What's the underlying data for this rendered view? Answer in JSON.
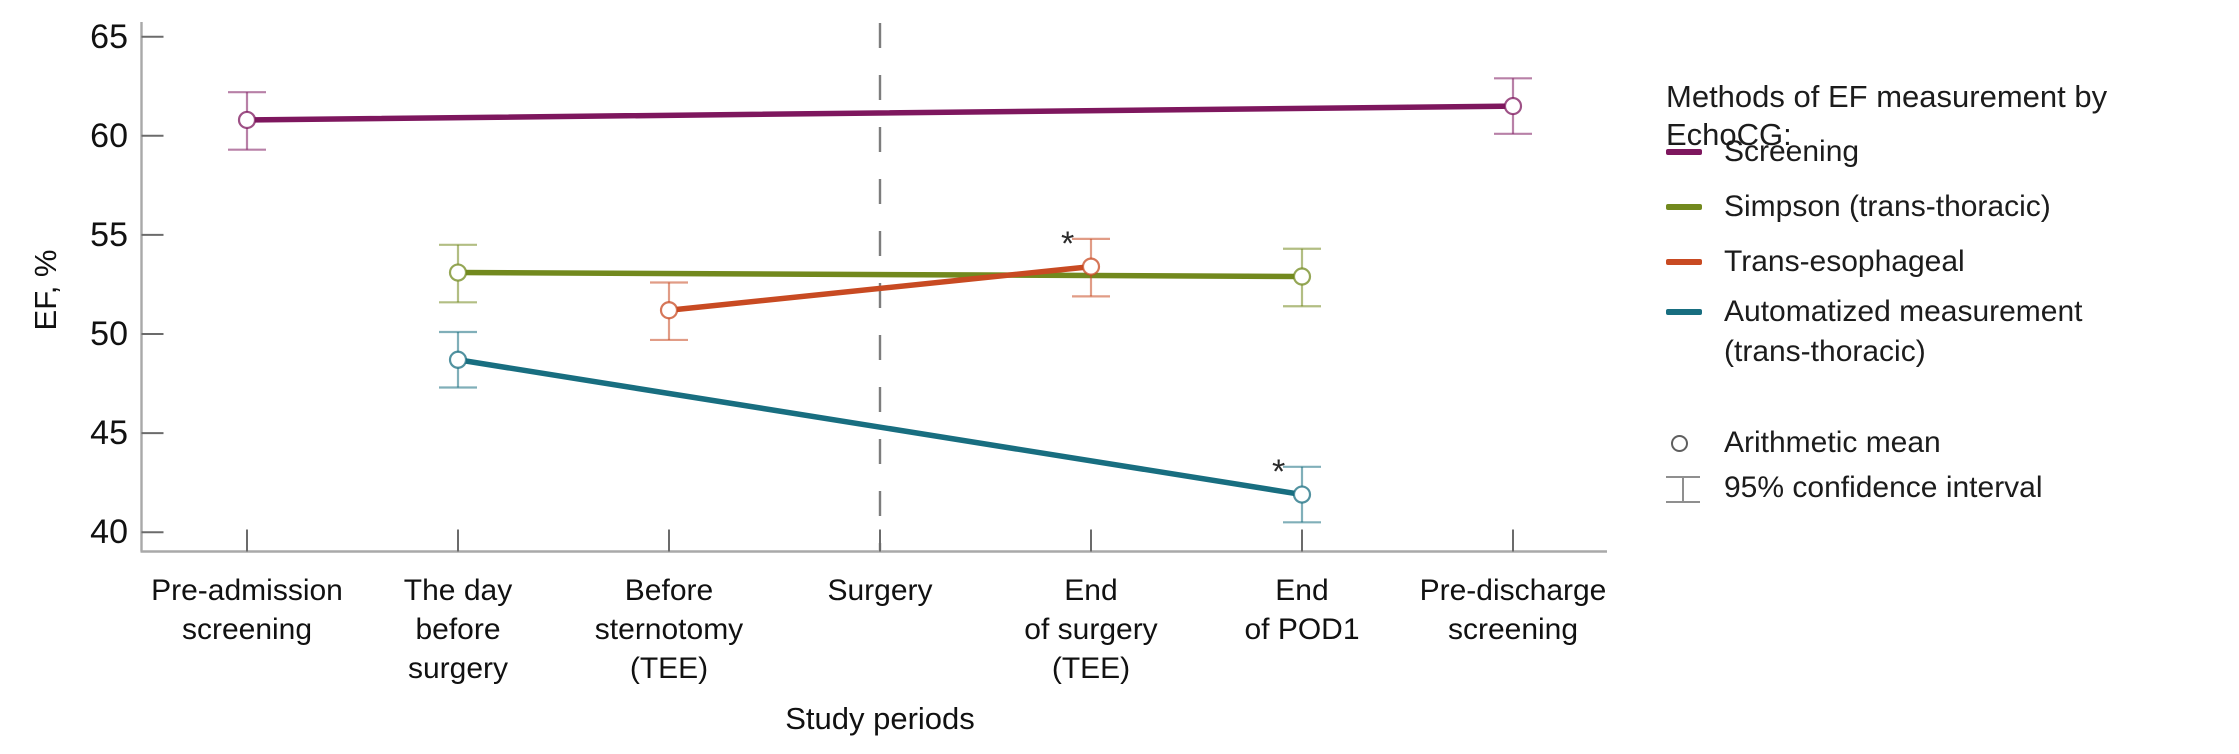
{
  "chart_data": {
    "type": "line",
    "title": "",
    "xlabel": "Study periods",
    "ylabel": "EF, %",
    "ylim": [
      39,
      66
    ],
    "yticks": [
      65,
      60,
      55,
      50,
      45,
      40
    ],
    "grid": false,
    "legend_position": "right",
    "categories": [
      "Pre-admission\nscreening",
      "The day\nbefore\nsurgery",
      "Before\nsternotomy\n(TEE)",
      "Surgery",
      "End\nof surgery\n(TEE)",
      "End\nof POD1",
      "Pre-discharge\nscreening"
    ],
    "vline": {
      "at_category_index": 3,
      "style": "dashed",
      "color": "#7d7d7d",
      "meaning": "Surgery"
    },
    "series": [
      {
        "name": "Screening",
        "color": "#7e175e",
        "points": [
          {
            "category_index": 0,
            "mean": 60.8,
            "ci_low": 59.3,
            "ci_high": 62.2
          },
          {
            "category_index": 6,
            "mean": 61.5,
            "ci_low": 60.1,
            "ci_high": 62.9
          }
        ]
      },
      {
        "name": "Simpson (trans-thoracic)",
        "color": "#72891e",
        "points": [
          {
            "category_index": 1,
            "mean": 53.1,
            "ci_low": 51.6,
            "ci_high": 54.5
          },
          {
            "category_index": 5,
            "mean": 52.9,
            "ci_low": 51.4,
            "ci_high": 54.3
          }
        ]
      },
      {
        "name": "Trans-esophageal",
        "color": "#c84a22",
        "points": [
          {
            "category_index": 2,
            "mean": 51.2,
            "ci_low": 49.7,
            "ci_high": 52.6
          },
          {
            "category_index": 4,
            "mean": 53.4,
            "ci_low": 51.9,
            "ci_high": 54.8,
            "flag": "*"
          }
        ]
      },
      {
        "name": "Automatized measurement\n(trans-thoracic)",
        "color": "#186e80",
        "points": [
          {
            "category_index": 1,
            "mean": 48.7,
            "ci_low": 47.3,
            "ci_high": 50.1
          },
          {
            "category_index": 5,
            "mean": 41.9,
            "ci_low": 40.5,
            "ci_high": 43.3,
            "flag": "*"
          }
        ]
      }
    ]
  },
  "legend": {
    "title": "Methods of EF measurement by EchoCG:",
    "marker_items": [
      {
        "symbol": "circle",
        "label": "Arithmetic mean"
      },
      {
        "symbol": "error-bar",
        "label": "95% confidence interval"
      }
    ]
  }
}
